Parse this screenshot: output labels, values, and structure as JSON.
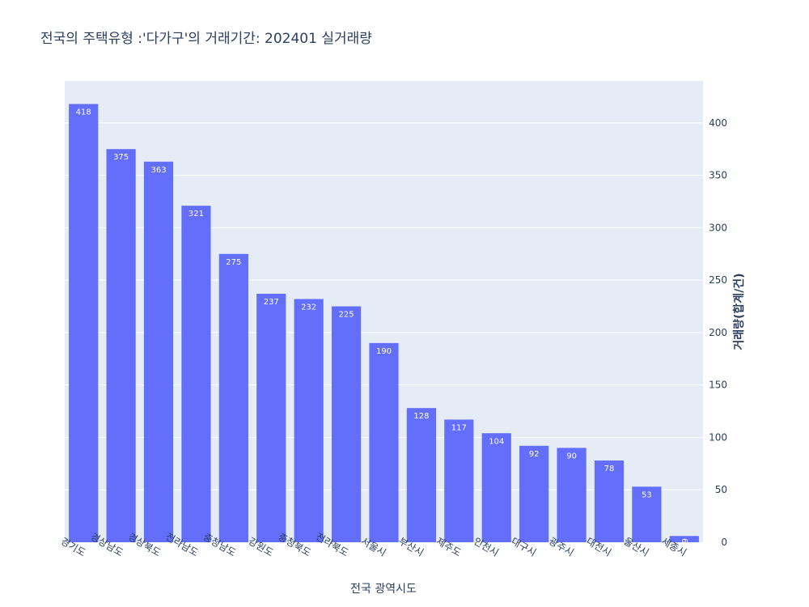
{
  "chart_data": {
    "type": "bar",
    "title": "전국의 주택유형 :'다가구'의 거래기간: 202401 실거래량",
    "xlabel": "전국 광역시도",
    "ylabel": "거래량(합계/건)",
    "y_axis_side": "right",
    "ylim": [
      0,
      440
    ],
    "yticks": [
      0,
      50,
      100,
      150,
      200,
      250,
      300,
      350,
      400
    ],
    "grid": true,
    "bar_color": "#636efa",
    "plot_bg": "#e5ecf6",
    "categories": [
      "경기도",
      "경상남도",
      "경상북도",
      "전라남도",
      "충청남도",
      "강원도",
      "충청북도",
      "전라북도",
      "서울시",
      "부산시",
      "제주도",
      "인천시",
      "대구시",
      "광주시",
      "대전시",
      "울산시",
      "세종시"
    ],
    "values": [
      418,
      375,
      363,
      321,
      275,
      237,
      232,
      225,
      190,
      128,
      117,
      104,
      92,
      90,
      78,
      53,
      6
    ]
  }
}
